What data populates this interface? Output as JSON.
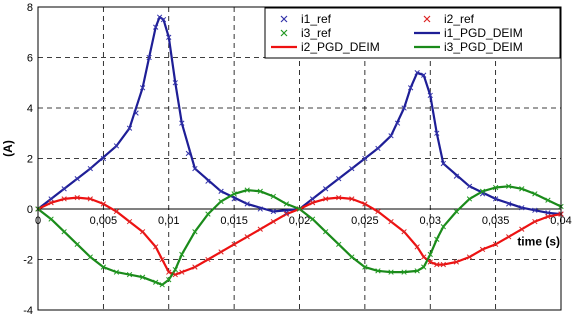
{
  "chart_data": {
    "type": "line",
    "xlabel": "time (s)",
    "ylabel": "(A)",
    "xlim": [
      0,
      0.04
    ],
    "ylim": [
      -4,
      8
    ],
    "x_ticks": [
      "0",
      "0,005",
      "0,01",
      "0,015",
      "0,02",
      "0,025",
      "0,03",
      "0,035",
      "0,04"
    ],
    "y_ticks": [
      "-4",
      "-2",
      "0",
      "2",
      "4",
      "6",
      "8"
    ],
    "grid": true,
    "legend_position": "top-right",
    "series": [
      {
        "name": "i1_ref",
        "style": "markers",
        "marker": "x",
        "color": "#3333aa",
        "x": [
          0,
          0.001,
          0.002,
          0.003,
          0.004,
          0.005,
          0.006,
          0.007,
          0.0075,
          0.008,
          0.0085,
          0.009,
          0.0093,
          0.0096,
          0.01,
          0.0105,
          0.011,
          0.0115,
          0.012,
          0.013,
          0.014,
          0.015,
          0.016,
          0.017,
          0.018,
          0.019,
          0.02,
          0.021,
          0.022,
          0.023,
          0.024,
          0.025,
          0.026,
          0.027,
          0.0275,
          0.028,
          0.0285,
          0.029,
          0.0295,
          0.03,
          0.0305,
          0.031,
          0.032,
          0.033,
          0.034,
          0.035,
          0.036,
          0.037,
          0.038,
          0.039,
          0.04
        ],
        "y": [
          0,
          0.4,
          0.8,
          1.2,
          1.6,
          2.0,
          2.5,
          3.2,
          3.8,
          4.8,
          6.0,
          7.2,
          7.6,
          7.5,
          6.8,
          5.0,
          3.4,
          2.2,
          1.6,
          1.1,
          0.7,
          0.4,
          0.2,
          0.0,
          -0.1,
          -0.15,
          0.0,
          0.4,
          0.8,
          1.2,
          1.6,
          2.0,
          2.4,
          2.9,
          3.4,
          4.0,
          4.8,
          5.4,
          5.3,
          4.5,
          3.0,
          1.8,
          1.3,
          0.9,
          0.6,
          0.4,
          0.2,
          0.05,
          -0.05,
          -0.15,
          -0.2
        ]
      },
      {
        "name": "i2_ref",
        "style": "markers",
        "marker": "x",
        "color": "#dd2222",
        "x": [
          0,
          0.001,
          0.002,
          0.003,
          0.004,
          0.005,
          0.006,
          0.007,
          0.008,
          0.009,
          0.0095,
          0.01,
          0.0105,
          0.011,
          0.012,
          0.013,
          0.014,
          0.015,
          0.016,
          0.017,
          0.018,
          0.019,
          0.02,
          0.021,
          0.022,
          0.023,
          0.024,
          0.025,
          0.026,
          0.027,
          0.028,
          0.029,
          0.0295,
          0.03,
          0.0305,
          0.031,
          0.032,
          0.033,
          0.034,
          0.035,
          0.036,
          0.037,
          0.038,
          0.039,
          0.04
        ],
        "y": [
          0,
          0.25,
          0.4,
          0.45,
          0.4,
          0.2,
          -0.1,
          -0.5,
          -0.9,
          -1.5,
          -2.0,
          -2.5,
          -2.6,
          -2.5,
          -2.3,
          -2.0,
          -1.7,
          -1.4,
          -1.1,
          -0.8,
          -0.5,
          -0.2,
          0.0,
          0.25,
          0.4,
          0.45,
          0.4,
          0.2,
          -0.1,
          -0.5,
          -0.9,
          -1.5,
          -1.9,
          -2.1,
          -2.2,
          -2.2,
          -2.1,
          -1.9,
          -1.6,
          -1.4,
          -1.1,
          -0.8,
          -0.5,
          -0.3,
          -0.2
        ]
      },
      {
        "name": "i3_ref",
        "style": "markers",
        "marker": "x",
        "color": "#229922",
        "x": [
          0,
          0.001,
          0.002,
          0.003,
          0.004,
          0.005,
          0.006,
          0.007,
          0.008,
          0.009,
          0.0095,
          0.01,
          0.0105,
          0.011,
          0.012,
          0.013,
          0.014,
          0.015,
          0.016,
          0.017,
          0.018,
          0.019,
          0.02,
          0.021,
          0.022,
          0.023,
          0.024,
          0.025,
          0.026,
          0.027,
          0.028,
          0.029,
          0.0295,
          0.03,
          0.0305,
          0.031,
          0.032,
          0.033,
          0.034,
          0.035,
          0.036,
          0.037,
          0.038,
          0.039,
          0.04
        ],
        "y": [
          0,
          -0.4,
          -0.9,
          -1.4,
          -1.9,
          -2.3,
          -2.5,
          -2.6,
          -2.7,
          -2.9,
          -3.0,
          -2.8,
          -2.4,
          -1.8,
          -0.9,
          -0.2,
          0.3,
          0.6,
          0.75,
          0.7,
          0.5,
          0.2,
          0.0,
          -0.4,
          -0.9,
          -1.4,
          -1.9,
          -2.3,
          -2.45,
          -2.5,
          -2.5,
          -2.45,
          -2.3,
          -1.8,
          -1.2,
          -0.7,
          -0.1,
          0.4,
          0.7,
          0.85,
          0.9,
          0.8,
          0.6,
          0.35,
          0.1
        ]
      },
      {
        "name": "i1_PGD_DEIM",
        "style": "line",
        "color": "#1e1e96",
        "x": [
          0,
          0.002,
          0.004,
          0.006,
          0.007,
          0.008,
          0.0085,
          0.009,
          0.0093,
          0.0096,
          0.01,
          0.0105,
          0.011,
          0.012,
          0.014,
          0.016,
          0.018,
          0.02,
          0.022,
          0.024,
          0.026,
          0.027,
          0.028,
          0.0285,
          0.029,
          0.0295,
          0.03,
          0.0305,
          0.031,
          0.033,
          0.035,
          0.037,
          0.039,
          0.04
        ],
        "y": [
          0,
          0.8,
          1.6,
          2.5,
          3.2,
          4.8,
          6.0,
          7.2,
          7.6,
          7.5,
          6.8,
          5.0,
          3.4,
          1.6,
          0.7,
          0.2,
          -0.1,
          0.0,
          0.8,
          1.6,
          2.4,
          2.9,
          4.0,
          4.8,
          5.4,
          5.3,
          4.5,
          3.0,
          1.8,
          0.9,
          0.4,
          0.05,
          -0.15,
          -0.2
        ]
      },
      {
        "name": "i2_PGD_DEIM",
        "style": "line",
        "color": "#ee1111",
        "x": [
          0,
          0.001,
          0.002,
          0.003,
          0.004,
          0.005,
          0.006,
          0.007,
          0.008,
          0.009,
          0.0095,
          0.01,
          0.0105,
          0.011,
          0.012,
          0.013,
          0.014,
          0.015,
          0.016,
          0.017,
          0.018,
          0.019,
          0.02,
          0.021,
          0.022,
          0.023,
          0.024,
          0.025,
          0.026,
          0.027,
          0.028,
          0.029,
          0.0295,
          0.03,
          0.0305,
          0.031,
          0.032,
          0.033,
          0.034,
          0.035,
          0.036,
          0.037,
          0.038,
          0.039,
          0.04
        ],
        "y": [
          0,
          0.25,
          0.4,
          0.45,
          0.4,
          0.2,
          -0.1,
          -0.5,
          -0.9,
          -1.5,
          -2.0,
          -2.5,
          -2.6,
          -2.5,
          -2.3,
          -2.0,
          -1.7,
          -1.4,
          -1.1,
          -0.8,
          -0.5,
          -0.2,
          0.0,
          0.25,
          0.4,
          0.45,
          0.4,
          0.2,
          -0.1,
          -0.5,
          -0.9,
          -1.5,
          -1.9,
          -2.1,
          -2.2,
          -2.2,
          -2.1,
          -1.9,
          -1.6,
          -1.4,
          -1.1,
          -0.8,
          -0.5,
          -0.3,
          -0.2
        ]
      },
      {
        "name": "i3_PGD_DEIM",
        "style": "line",
        "color": "#1a8a1a",
        "x": [
          0,
          0.001,
          0.002,
          0.003,
          0.004,
          0.005,
          0.006,
          0.007,
          0.008,
          0.009,
          0.0095,
          0.01,
          0.0105,
          0.011,
          0.012,
          0.013,
          0.014,
          0.015,
          0.016,
          0.017,
          0.018,
          0.019,
          0.02,
          0.021,
          0.022,
          0.023,
          0.024,
          0.025,
          0.026,
          0.027,
          0.028,
          0.029,
          0.0295,
          0.03,
          0.0305,
          0.031,
          0.032,
          0.033,
          0.034,
          0.035,
          0.036,
          0.037,
          0.038,
          0.039,
          0.04
        ],
        "y": [
          0,
          -0.4,
          -0.9,
          -1.4,
          -1.9,
          -2.3,
          -2.5,
          -2.6,
          -2.7,
          -2.9,
          -3.0,
          -2.8,
          -2.4,
          -1.8,
          -0.9,
          -0.2,
          0.3,
          0.6,
          0.75,
          0.7,
          0.5,
          0.2,
          0.0,
          -0.4,
          -0.9,
          -1.4,
          -1.9,
          -2.3,
          -2.45,
          -2.5,
          -2.5,
          -2.45,
          -2.3,
          -1.8,
          -1.2,
          -0.7,
          -0.1,
          0.4,
          0.7,
          0.85,
          0.9,
          0.8,
          0.6,
          0.35,
          0.1
        ]
      }
    ]
  }
}
